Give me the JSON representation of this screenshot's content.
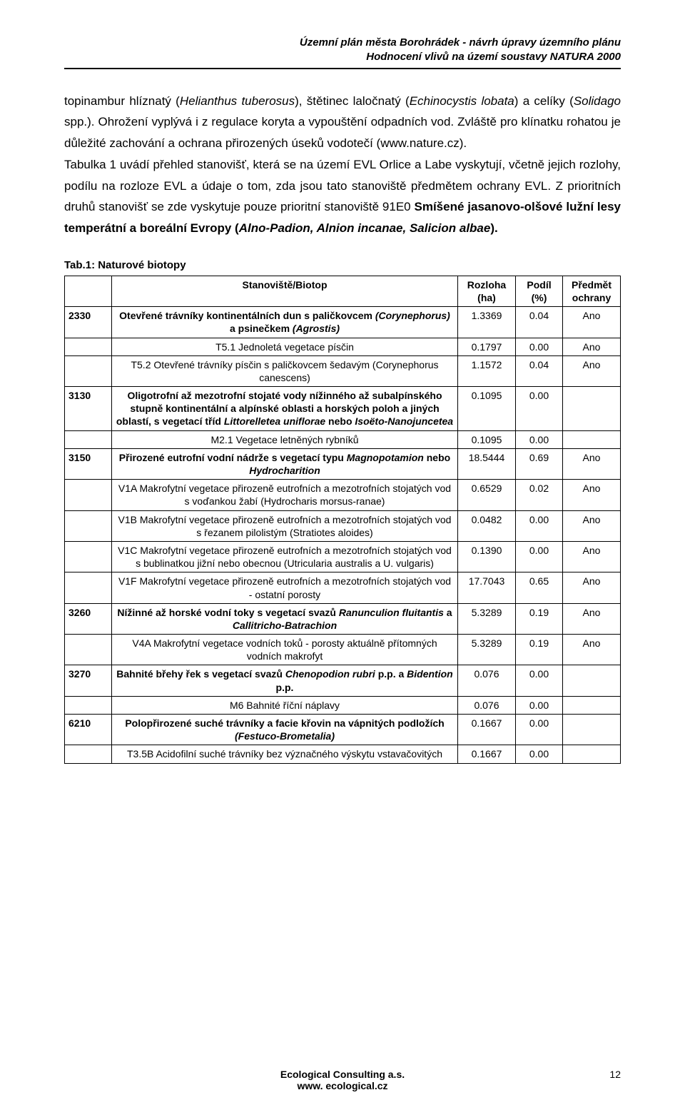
{
  "header": {
    "line1": "Územní plán města Borohrádek - návrh úpravy územního plánu",
    "line2": "Hodnocení vlivů na území soustavy NATURA 2000"
  },
  "paragraph_parts": [
    {
      "t": "plain",
      "v": "topinambur hlíznatý ("
    },
    {
      "t": "italic",
      "v": "Helianthus tuberosus"
    },
    {
      "t": "plain",
      "v": "), štětinec laločnatý ("
    },
    {
      "t": "italic",
      "v": "Echinocystis lobata"
    },
    {
      "t": "plain",
      "v": ") a celíky ("
    },
    {
      "t": "italic",
      "v": "Solidago"
    },
    {
      "t": "plain",
      "v": " spp.). Ohrožení vyplývá i z regulace koryta a vypouštění odpadních vod. Zvláště pro klínatku rohatou je důležité zachování a ochrana přirozených úseků vodotečí (www.nature.cz)."
    },
    {
      "t": "break"
    },
    {
      "t": "plain",
      "v": "Tabulka 1 uvádí přehled stanovišť, která se na území EVL Orlice a Labe vyskytují, včetně jejich rozlohy, podílu na rozloze EVL a údaje o tom, zda jsou tato stanoviště předmětem ochrany EVL. Z prioritních druhů stanovišť se zde vyskytuje pouze prioritní stanoviště 91E0 "
    },
    {
      "t": "bold",
      "v": "Smíšené jasanovo-olšové lužní lesy temperátní a boreální Evropy ("
    },
    {
      "t": "bold-italic",
      "v": "Alno-Padion, Alnion incanae, Salicion albae"
    },
    {
      "t": "bold",
      "v": ")."
    }
  ],
  "table_caption": "Tab.1: Naturové biotopy",
  "table_headers": {
    "col1": "",
    "col2": "Stanoviště/Biotop",
    "col3a": "Rozloha",
    "col3b": "(ha)",
    "col4a": "Podíl",
    "col4b": "(%)",
    "col5a": "Předmět",
    "col5b": "ochrany"
  },
  "rows": [
    {
      "code": "2330",
      "desc": [
        {
          "t": "bold",
          "v": "Otevřené trávníky kontinentálních dun s paličkovcem "
        },
        {
          "t": "bold-italic",
          "v": "(Corynephorus) "
        },
        {
          "t": "bold",
          "v": "a psinečkem "
        },
        {
          "t": "bold-italic",
          "v": "(Agrostis)"
        }
      ],
      "rozloha": "1.3369",
      "podil": "0.04",
      "ochrany": "Ano"
    },
    {
      "code": "",
      "desc": [
        {
          "t": "plain",
          "v": "T5.1 Jednoletá vegetace písčin"
        }
      ],
      "rozloha": "0.1797",
      "podil": "0.00",
      "ochrany": "Ano"
    },
    {
      "code": "",
      "desc": [
        {
          "t": "plain",
          "v": "T5.2 Otevřené trávníky písčin s paličkovcem šedavým (Corynephorus canescens)"
        }
      ],
      "rozloha": "1.1572",
      "podil": "0.04",
      "ochrany": "Ano"
    },
    {
      "code": "3130",
      "desc": [
        {
          "t": "bold",
          "v": "Oligotrofní až mezotrofní stojaté vody nížinného až subalpínského stupně kontinentální a alpínské oblasti a horských poloh a jiných oblastí, s vegetací tříd "
        },
        {
          "t": "bold-italic",
          "v": "Littorelletea uniflorae"
        },
        {
          "t": "bold",
          "v": " nebo "
        },
        {
          "t": "bold-italic",
          "v": "Isoëto-Nanojuncetea"
        }
      ],
      "rozloha": "0.1095",
      "podil": "0.00",
      "ochrany": ""
    },
    {
      "code": "",
      "desc": [
        {
          "t": "plain",
          "v": "M2.1 Vegetace letněných rybníků"
        }
      ],
      "rozloha": "0.1095",
      "podil": "0.00",
      "ochrany": ""
    },
    {
      "code": "3150",
      "desc": [
        {
          "t": "bold",
          "v": "Přirozené eutrofní vodní nádrže s vegetací typu "
        },
        {
          "t": "bold-italic",
          "v": "Magnopotamion"
        },
        {
          "t": "bold",
          "v": " nebo "
        },
        {
          "t": "bold-italic",
          "v": "Hydrocharition"
        }
      ],
      "rozloha": "18.5444",
      "podil": "0.69",
      "ochrany": "Ano"
    },
    {
      "code": "",
      "desc": [
        {
          "t": "plain",
          "v": "V1A Makrofytní vegetace přirozeně eutrofních a mezotrofních stojatých vod s voďankou žabí (Hydrocharis morsus-ranae)"
        }
      ],
      "rozloha": "0.6529",
      "podil": "0.02",
      "ochrany": "Ano"
    },
    {
      "code": "",
      "desc": [
        {
          "t": "plain",
          "v": "V1B Makrofytní vegetace přirozeně eutrofních a mezotrofních stojatých vod s řezanem pilolistým (Stratiotes aloides)"
        }
      ],
      "rozloha": "0.0482",
      "podil": "0.00",
      "ochrany": "Ano"
    },
    {
      "code": "",
      "desc": [
        {
          "t": "plain",
          "v": "V1C Makrofytní vegetace přirozeně eutrofních a mezotrofních stojatých vod s bublinatkou jižní nebo obecnou (Utricularia australis a U. vulgaris)"
        }
      ],
      "rozloha": "0.1390",
      "podil": "0.00",
      "ochrany": "Ano"
    },
    {
      "code": "",
      "desc": [
        {
          "t": "plain",
          "v": "V1F Makrofytní vegetace přirozeně eutrofních a mezotrofních stojatých vod - ostatní porosty"
        }
      ],
      "rozloha": "17.7043",
      "podil": "0.65",
      "ochrany": "Ano"
    },
    {
      "code": "3260",
      "desc": [
        {
          "t": "bold",
          "v": "Nížinné až horské vodní toky s vegetací svazů "
        },
        {
          "t": "bold-italic",
          "v": "Ranunculion fluitantis"
        },
        {
          "t": "bold",
          "v": " a "
        },
        {
          "t": "bold-italic",
          "v": "Callitricho-Batrachion"
        }
      ],
      "rozloha": "5.3289",
      "podil": "0.19",
      "ochrany": "Ano"
    },
    {
      "code": "",
      "desc": [
        {
          "t": "plain",
          "v": "V4A Makrofytní vegetace vodních toků - porosty aktuálně přítomných vodních makrofyt"
        }
      ],
      "rozloha": "5.3289",
      "podil": "0.19",
      "ochrany": "Ano"
    },
    {
      "code": "3270",
      "desc": [
        {
          "t": "bold",
          "v": "Bahnité břehy řek s vegetací svazů "
        },
        {
          "t": "bold-italic",
          "v": "Chenopodion rubri"
        },
        {
          "t": "bold",
          "v": " p.p. a "
        },
        {
          "t": "bold-italic",
          "v": "Bidention"
        },
        {
          "t": "bold",
          "v": " p.p."
        }
      ],
      "rozloha": "0.076",
      "podil": "0.00",
      "ochrany": ""
    },
    {
      "code": "",
      "desc": [
        {
          "t": "plain",
          "v": "M6 Bahnité říční náplavy"
        }
      ],
      "rozloha": "0.076",
      "podil": "0.00",
      "ochrany": ""
    },
    {
      "code": "6210",
      "desc": [
        {
          "t": "bold",
          "v": "Polopřirozené suché trávníky a facie křovin na vápnitých podložích "
        },
        {
          "t": "bold-italic",
          "v": "(Festuco-Brometalia)"
        }
      ],
      "rozloha": "0.1667",
      "podil": "0.00",
      "ochrany": ""
    },
    {
      "code": "",
      "desc": [
        {
          "t": "plain",
          "v": "T3.5B Acidofilní suché trávníky bez význačného výskytu vstavačovitých"
        }
      ],
      "rozloha": "0.1667",
      "podil": "0.00",
      "ochrany": ""
    }
  ],
  "footer": {
    "line1": "Ecological Consulting a.s.",
    "line2": "www. ecological.cz",
    "pagenum": "12"
  }
}
